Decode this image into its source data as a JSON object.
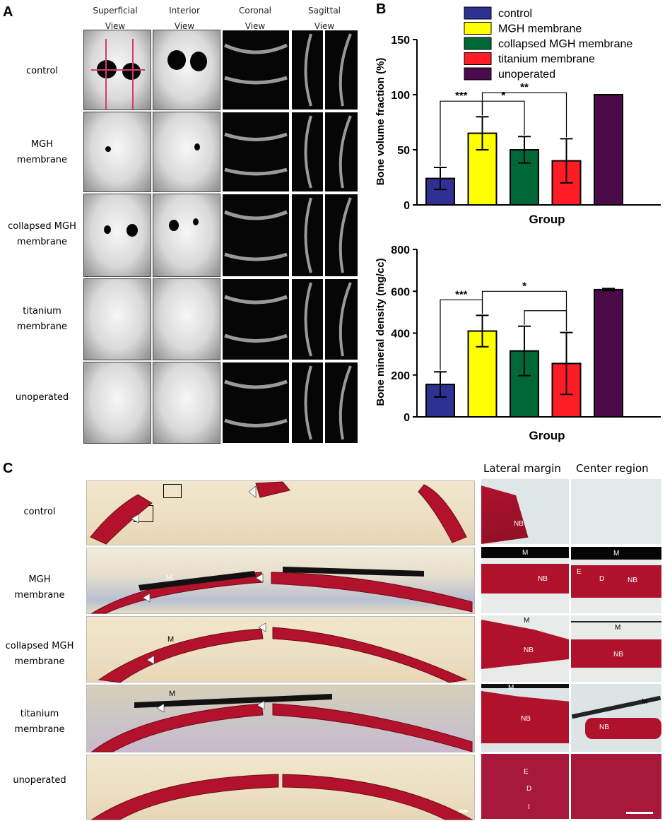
{
  "panels": {
    "a": "A",
    "b": "B",
    "c": "C"
  },
  "panelA": {
    "column_headers": [
      {
        "line1": "Superficial",
        "line2": "View"
      },
      {
        "line1": "Interior",
        "line2": "View"
      },
      {
        "line1": "Coronal",
        "line2": "View"
      },
      {
        "line1": "Sagittal",
        "line2": "View"
      }
    ],
    "rows": [
      {
        "line1": "control",
        "line2": ""
      },
      {
        "line1": "MGH",
        "line2": "membrane"
      },
      {
        "line1": "collapsed MGH",
        "line2": "membrane"
      },
      {
        "line1": "titanium",
        "line2": "membrane"
      },
      {
        "line1": "unoperated",
        "line2": ""
      }
    ]
  },
  "chart_data": [
    {
      "type": "bar",
      "categories": [
        "control",
        "MGH membrane",
        "collapsed MGH membrane",
        "titanium membrane",
        "unoperated"
      ],
      "values": [
        24,
        65,
        50,
        40,
        100
      ],
      "errors": [
        10,
        15,
        12,
        20,
        0
      ],
      "colors": [
        "#2e3192",
        "#ffff00",
        "#006837",
        "#ff1d25",
        "#4b0a4a"
      ],
      "xlabel": "Group",
      "ylabel": "Bone volume fraction (%)",
      "ylim": [
        0,
        150
      ],
      "yticks": [
        "0",
        "50",
        "100",
        "150"
      ],
      "legend": [
        "control",
        "MGH membrane",
        "collapsed MGH membrane",
        "titanium membrane",
        "unoperated"
      ],
      "legend_placement": "top",
      "significance": [
        {
          "from": 0,
          "to": 1,
          "label": "***"
        },
        {
          "from": 1,
          "to": 2,
          "label": "*"
        },
        {
          "from": 1,
          "to": 3,
          "label": "**"
        }
      ]
    },
    {
      "type": "bar",
      "categories": [
        "control",
        "MGH membrane",
        "collapsed MGH membrane",
        "titanium membrane",
        "unoperated"
      ],
      "values": [
        155,
        410,
        315,
        255,
        608
      ],
      "errors": [
        60,
        75,
        118,
        148,
        5
      ],
      "colors": [
        "#2e3192",
        "#ffff00",
        "#006837",
        "#ff1d25",
        "#4b0a4a"
      ],
      "xlabel": "Group",
      "ylabel": "Bone mineral density (mg/cc)",
      "ylim": [
        0,
        800
      ],
      "yticks": [
        "0",
        "200",
        "400",
        "600",
        "800"
      ],
      "significance": [
        {
          "from": 0,
          "to": 1,
          "label": "***"
        },
        {
          "from": 1,
          "to": 3,
          "label": "*"
        },
        {
          "from": 2,
          "to": 3,
          "label": ""
        }
      ]
    }
  ],
  "panelC": {
    "column_headers": [
      "Lateral margin",
      "Center region"
    ],
    "rows": [
      {
        "line1": "control",
        "line2": ""
      },
      {
        "line1": "MGH",
        "line2": "membrane"
      },
      {
        "line1": "collapsed MGH",
        "line2": "membrane"
      },
      {
        "line1": "titanium",
        "line2": "membrane"
      },
      {
        "line1": "unoperated",
        "line2": ""
      }
    ],
    "labels": {
      "M": "M",
      "NB": "NB",
      "E": "E",
      "D": "D",
      "I": "I"
    }
  }
}
